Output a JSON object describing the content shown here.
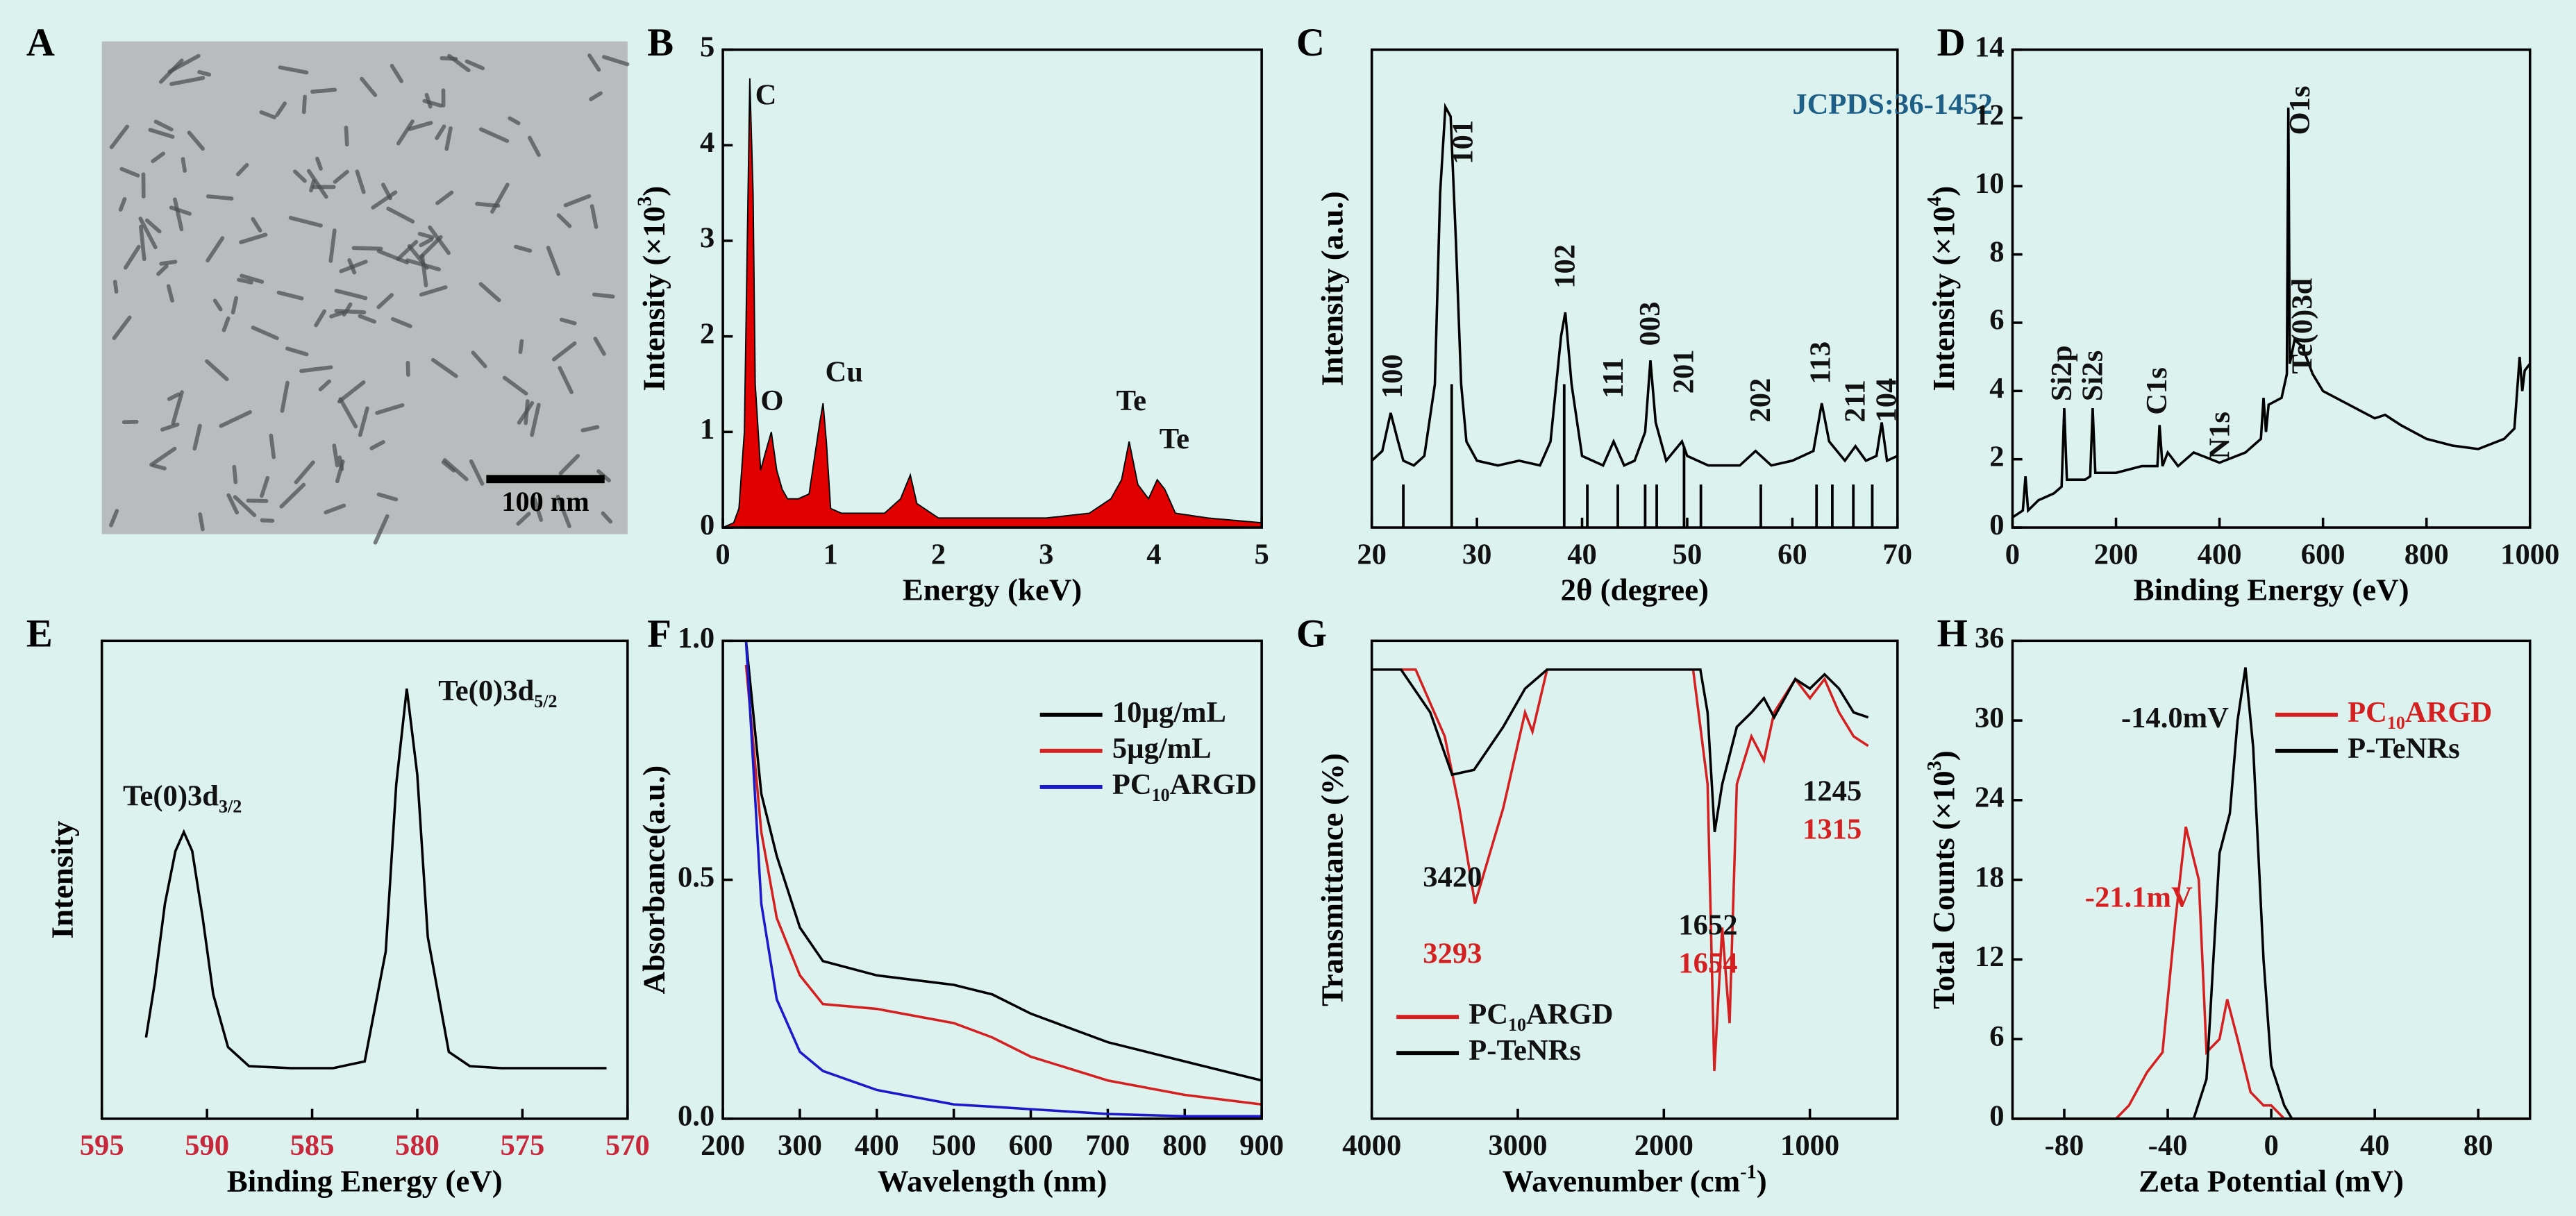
{
  "chart_data": [
    {
      "panel": "A",
      "type": "image",
      "scale_bar": "100 nm"
    },
    {
      "panel": "B",
      "type": "area",
      "color": "#e00000",
      "xlabel": "Energy (keV)",
      "ylabel": "Intensity (×10",
      "ylabel_sup": "3",
      "ylabel_tail": ")",
      "xlim": [
        0,
        5
      ],
      "ylim": [
        0,
        5
      ],
      "xticks": [
        0,
        1,
        2,
        3,
        4,
        5
      ],
      "yticks": [
        0,
        1,
        2,
        3,
        4,
        5
      ],
      "x": [
        0,
        0.1,
        0.15,
        0.2,
        0.25,
        0.28,
        0.3,
        0.35,
        0.4,
        0.45,
        0.5,
        0.55,
        0.6,
        0.7,
        0.8,
        0.9,
        0.93,
        0.96,
        1.0,
        1.1,
        1.3,
        1.5,
        1.65,
        1.74,
        1.8,
        2.0,
        2.5,
        3.0,
        3.4,
        3.6,
        3.7,
        3.77,
        3.85,
        3.95,
        4.03,
        4.1,
        4.2,
        4.5,
        5.0
      ],
      "series": [
        {
          "values": [
            0,
            0.05,
            0.2,
            1.0,
            4.7,
            3.5,
            1.5,
            0.6,
            0.8,
            1.0,
            0.6,
            0.4,
            0.3,
            0.3,
            0.35,
            1.1,
            1.3,
            0.9,
            0.2,
            0.15,
            0.15,
            0.15,
            0.3,
            0.55,
            0.25,
            0.1,
            0.1,
            0.1,
            0.15,
            0.3,
            0.5,
            0.9,
            0.45,
            0.3,
            0.5,
            0.4,
            0.15,
            0.1,
            0.05
          ]
        }
      ],
      "annotations": [
        {
          "text": "C",
          "x": 0.3,
          "y": 4.5
        },
        {
          "text": "O",
          "x": 0.35,
          "y": 1.3
        },
        {
          "text": "Cu",
          "x": 0.95,
          "y": 1.6
        },
        {
          "text": "Te",
          "x": 3.65,
          "y": 1.3
        },
        {
          "text": "Te",
          "x": 4.05,
          "y": 0.9
        }
      ]
    },
    {
      "panel": "C",
      "type": "line",
      "color": "#000000",
      "xlabel": "2θ (degree)",
      "ylabel": "Intensity (a.u.)",
      "xlim": [
        20,
        70
      ],
      "ylim": [
        0,
        100
      ],
      "xticks": [
        20,
        30,
        40,
        50,
        60,
        70
      ],
      "x": [
        20,
        21,
        21.8,
        22.5,
        23,
        24,
        25,
        26,
        26.5,
        27,
        27.5,
        28,
        28.5,
        29,
        30,
        32,
        34,
        36,
        37,
        38,
        38.4,
        39,
        40,
        42,
        43,
        44,
        45,
        46,
        46.5,
        47,
        48,
        49.5,
        50,
        52,
        55,
        56.5,
        58,
        60,
        62,
        62.8,
        63.5,
        65,
        66,
        67,
        68,
        68.5,
        69,
        70
      ],
      "series": [
        {
          "values": [
            14,
            16,
            24,
            18,
            14,
            13,
            15,
            30,
            70,
            88,
            86,
            60,
            30,
            18,
            14,
            13,
            14,
            13,
            18,
            40,
            45,
            30,
            15,
            13,
            18,
            13,
            14,
            20,
            35,
            22,
            14,
            18,
            15,
            13,
            13,
            16,
            13,
            14,
            16,
            26,
            18,
            14,
            17,
            14,
            15,
            22,
            14,
            15
          ]
        }
      ],
      "reference": {
        "x": [
          23,
          27.6,
          38.3,
          40.5,
          43.4,
          46,
          47.1,
          49.7,
          51.3,
          57,
          62.3,
          63.8,
          65.8,
          67.6
        ],
        "values": [
          9,
          30,
          30,
          9,
          9,
          9,
          9,
          17,
          9,
          9,
          9,
          9,
          9,
          9
        ]
      },
      "annotations": [
        {
          "text": "100",
          "x": 22.2,
          "y": 27,
          "vertical": true
        },
        {
          "text": "101",
          "x": 28.9,
          "y": 76,
          "vertical": true
        },
        {
          "text": "102",
          "x": 38.6,
          "y": 50,
          "vertical": true
        },
        {
          "text": "111",
          "x": 43.2,
          "y": 27,
          "vertical": true
        },
        {
          "text": "003",
          "x": 46.7,
          "y": 38,
          "vertical": true
        },
        {
          "text": "201",
          "x": 49.9,
          "y": 28,
          "vertical": true
        },
        {
          "text": "202",
          "x": 57.2,
          "y": 22,
          "vertical": true
        },
        {
          "text": "113",
          "x": 62.9,
          "y": 30,
          "vertical": true
        },
        {
          "text": "211",
          "x": 66.2,
          "y": 22,
          "vertical": true
        },
        {
          "text": "104",
          "x": 69.2,
          "y": 22,
          "vertical": true
        },
        {
          "text": "JCPDS:36-1452",
          "x": 60,
          "y": 88,
          "color": "#1d5f86"
        }
      ]
    },
    {
      "panel": "D",
      "type": "line",
      "color": "#000000",
      "xlabel": "Binding Energy (eV)",
      "ylabel": "Intensity (×10",
      "ylabel_sup": "4",
      "ylabel_tail": ")",
      "xlim": [
        0,
        1000
      ],
      "ylim": [
        0,
        14
      ],
      "xticks": [
        0,
        200,
        400,
        600,
        800,
        1000
      ],
      "yticks": [
        0,
        2,
        4,
        6,
        8,
        10,
        12,
        14
      ],
      "x": [
        0,
        10,
        20,
        25,
        30,
        50,
        80,
        95,
        100,
        105,
        140,
        150,
        155,
        160,
        200,
        250,
        280,
        284,
        290,
        300,
        320,
        350,
        400,
        450,
        480,
        485,
        490,
        495,
        520,
        530,
        533,
        536,
        545,
        560,
        580,
        600,
        700,
        720,
        750,
        800,
        850,
        900,
        950,
        970,
        980,
        985,
        990,
        1000
      ],
      "series": [
        {
          "values": [
            0.3,
            0.4,
            0.5,
            1.5,
            0.5,
            0.8,
            1.0,
            1.2,
            3.5,
            1.4,
            1.4,
            1.5,
            3.5,
            1.6,
            1.6,
            1.8,
            1.8,
            3.0,
            1.8,
            2.2,
            1.8,
            2.2,
            1.9,
            2.2,
            2.6,
            3.8,
            2.8,
            3.6,
            3.8,
            4.5,
            12.3,
            4.8,
            5.5,
            5.3,
            4.5,
            4.0,
            3.2,
            3.3,
            3.0,
            2.6,
            2.4,
            2.3,
            2.6,
            2.9,
            5.0,
            4.0,
            4.6,
            4.8
          ]
        }
      ],
      "annotations": [
        {
          "text": "Si2p",
          "x": 100,
          "y": 3.7,
          "vertical": true
        },
        {
          "text": "Si2s",
          "x": 160,
          "y": 3.7,
          "vertical": true
        },
        {
          "text": "C1s",
          "x": 284,
          "y": 3.3,
          "vertical": true
        },
        {
          "text": "N1s",
          "x": 405,
          "y": 2.0,
          "vertical": true
        },
        {
          "text": "Te(0)3d",
          "x": 565,
          "y": 4.5,
          "vertical": true
        },
        {
          "text": "O1s",
          "x": 560,
          "y": 11.5,
          "vertical": true
        }
      ]
    },
    {
      "panel": "E",
      "type": "line",
      "color": "#000000",
      "xlabel": "Binding Energy (eV)",
      "ylabel": "Intensity",
      "tick_color": "#c8283c",
      "xlim": [
        595,
        570
      ],
      "ylim": [
        0,
        100
      ],
      "xticks": [
        595,
        590,
        585,
        580,
        575,
        570
      ],
      "x": [
        592.9,
        592.5,
        592,
        591.5,
        591.1,
        590.7,
        590.2,
        589.7,
        589,
        588,
        586,
        584,
        582.5,
        581.5,
        581,
        580.5,
        580,
        579.5,
        578.5,
        577.5,
        576,
        574,
        571
      ],
      "series": [
        {
          "values": [
            17,
            28,
            45,
            56,
            60,
            56,
            42,
            26,
            15,
            11,
            10.6,
            10.6,
            12,
            35,
            70,
            90,
            72,
            38,
            14,
            11,
            10.6,
            10.6,
            10.6
          ]
        }
      ],
      "annotations": [
        {
          "text": "Te(0)3d",
          "sub": "3/2",
          "x": 594,
          "y": 67
        },
        {
          "text": "Te(0)3d",
          "sub": "5/2",
          "x": 579,
          "y": 89
        }
      ]
    },
    {
      "panel": "F",
      "type": "line",
      "xlabel": "Wavelength (nm)",
      "ylabel": "Absorbance(a.u.)",
      "legend": "upper right",
      "xlim": [
        200,
        900
      ],
      "ylim": [
        0,
        1
      ],
      "xticks": [
        200,
        300,
        400,
        500,
        600,
        700,
        800,
        900
      ],
      "yticks": [
        {
          "value": 0,
          "label": "0.0"
        },
        0.5,
        {
          "value": 1,
          "label": "1.0"
        }
      ],
      "x": [
        230,
        250,
        270,
        300,
        330,
        400,
        500,
        550,
        600,
        700,
        800,
        900
      ],
      "series": [
        {
          "name": "10µg/mL",
          "color": "#000000",
          "values": [
            1.0,
            0.68,
            0.55,
            0.4,
            0.33,
            0.3,
            0.28,
            0.26,
            0.22,
            0.16,
            0.12,
            0.08
          ]
        },
        {
          "name": "5µg/mL",
          "color": "#d42020",
          "values": [
            0.95,
            0.6,
            0.42,
            0.3,
            0.24,
            0.23,
            0.2,
            0.17,
            0.13,
            0.08,
            0.05,
            0.03
          ]
        },
        {
          "name": "PC10ARGD",
          "color": "#1a1acc",
          "values": [
            1.0,
            0.45,
            0.25,
            0.14,
            0.1,
            0.06,
            0.03,
            0.025,
            0.02,
            0.01,
            0.005,
            0.005
          ]
        }
      ]
    },
    {
      "panel": "G",
      "type": "line",
      "xlabel": "Wavenumber (cm",
      "xlabel_sup": "-1",
      "xlabel_tail": ")",
      "ylabel": "Transmittance (%)",
      "legend": "lower left",
      "xlim": [
        4000,
        400
      ],
      "ylim": [
        0,
        100
      ],
      "xticks": [
        4000,
        3000,
        2000,
        1000
      ],
      "series": [
        {
          "name": "PC10ARGD",
          "color": "#d42020",
          "x": [
            4000,
            3700,
            3500,
            3400,
            3293,
            3100,
            2950,
            2900,
            2800,
            1800,
            1700,
            1654,
            1600,
            1550,
            1500,
            1400,
            1315,
            1245,
            1100,
            1000,
            900,
            800,
            700,
            600
          ],
          "values": [
            94,
            94,
            80,
            65,
            45,
            65,
            85,
            81,
            94,
            94,
            70,
            10,
            40,
            20,
            70,
            80,
            75,
            85,
            92,
            88,
            92,
            85,
            80,
            78
          ]
        },
        {
          "name": "P-TeNRs",
          "color": "#000000",
          "x": [
            4000,
            3800,
            3600,
            3450,
            3300,
            3100,
            2950,
            2800,
            1750,
            1700,
            1652,
            1600,
            1500,
            1400,
            1315,
            1245,
            1100,
            1000,
            900,
            800,
            700,
            600
          ],
          "values": [
            94,
            94,
            85,
            72,
            73,
            82,
            90,
            94,
            94,
            85,
            60,
            70,
            82,
            85,
            88,
            84,
            92,
            90,
            93,
            90,
            85,
            84
          ]
        }
      ],
      "annotations": [
        {
          "text": "3420",
          "x": 3650,
          "y": 50
        },
        {
          "text": "3293",
          "x": 3650,
          "y": 34,
          "color": "#d42020"
        },
        {
          "text": "1652",
          "x": 1900,
          "y": 40
        },
        {
          "text": "1654",
          "x": 1900,
          "y": 32,
          "color": "#d42020"
        },
        {
          "text": "1245",
          "x": 1050,
          "y": 68
        },
        {
          "text": "1315",
          "x": 1050,
          "y": 60,
          "color": "#d42020"
        }
      ]
    },
    {
      "panel": "H",
      "type": "line",
      "xlabel": "Zeta Potential (mV)",
      "ylabel": "Total Counts (×10",
      "ylabel_sup": "3",
      "ylabel_tail": ")",
      "legend": "upper right",
      "xlim": [
        -100,
        100
      ],
      "ylim": [
        0,
        36
      ],
      "xticks": [
        -80,
        -40,
        0,
        40,
        80
      ],
      "yticks": [
        0,
        6,
        12,
        18,
        24,
        30,
        36
      ],
      "series": [
        {
          "name": "PC10ARGD",
          "color": "#d42020",
          "x": [
            -100,
            -60,
            -55,
            -48,
            -42,
            -37,
            -33,
            -28,
            -25,
            -20,
            -17,
            -13,
            -8,
            -3,
            0,
            5,
            100
          ],
          "values": [
            0,
            0,
            1,
            3.5,
            5,
            15,
            22,
            18,
            5,
            6,
            9,
            6,
            2,
            1,
            1,
            0,
            0
          ]
        },
        {
          "name": "P-TeNRs",
          "color": "#000000",
          "x": [
            -100,
            -30,
            -25,
            -20,
            -16,
            -13,
            -10,
            -7,
            -3,
            0,
            5,
            8,
            100
          ],
          "values": [
            0,
            0,
            3,
            20,
            23,
            30,
            34,
            28,
            12,
            4,
            1,
            0,
            0
          ]
        }
      ],
      "annotations": [
        {
          "text": "-14.0mV",
          "x": -58,
          "y": 30
        },
        {
          "text": "-21.1mV",
          "x": -72,
          "y": 16.5,
          "color": "#d42020"
        }
      ]
    }
  ]
}
